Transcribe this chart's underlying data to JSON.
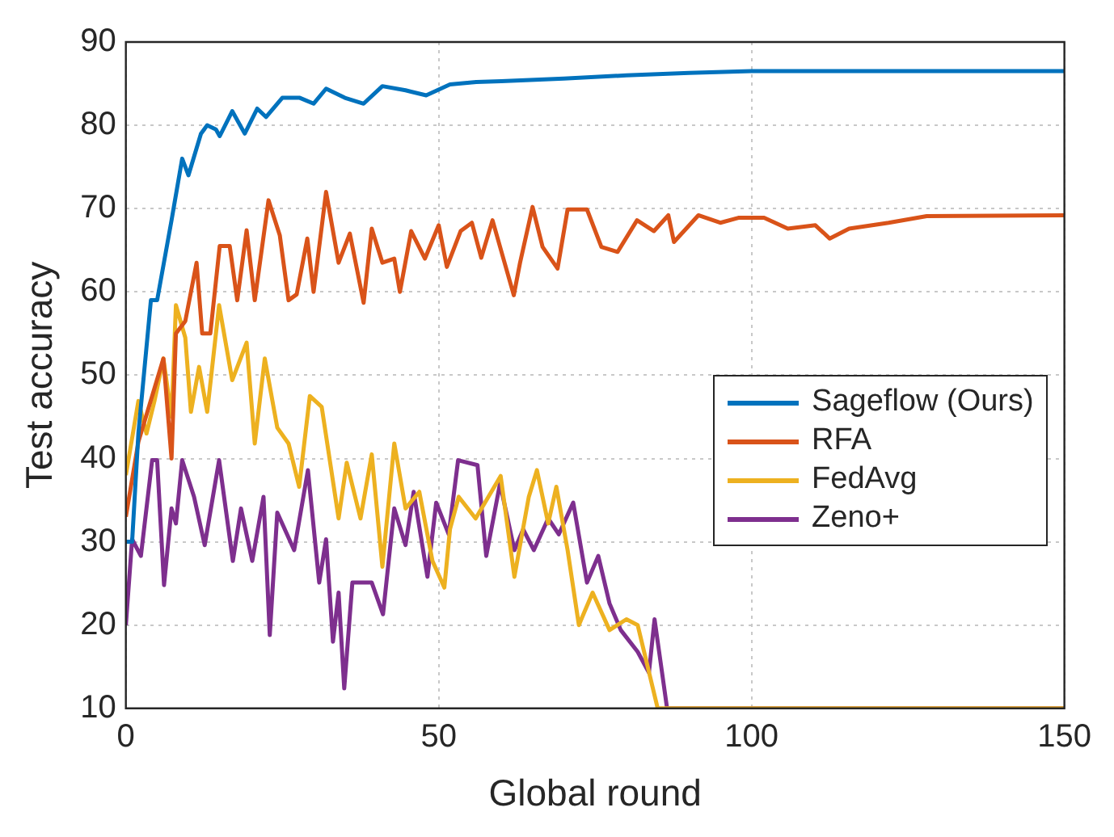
{
  "chart_data": {
    "type": "line",
    "xlabel": "Global round",
    "ylabel": "Test accuracy",
    "xlim": [
      0,
      150
    ],
    "xticks": [
      0,
      50,
      100,
      150
    ],
    "ylim": [
      10,
      90
    ],
    "yticks": [
      10,
      20,
      30,
      40,
      50,
      60,
      70,
      80,
      90
    ],
    "grid": true,
    "legend": "right",
    "marker": "none",
    "series": [
      {
        "name": "Sageflow (Ours)",
        "color": "#0072bd",
        "x": [
          0,
          1,
          2,
          4,
          5,
          7.3,
          9,
          10,
          12,
          13,
          14.4,
          15,
          17,
          19,
          21,
          22.4,
          25,
          27.8,
          30,
          32,
          35,
          38,
          41,
          44.7,
          48,
          51.8,
          56,
          60,
          70,
          80,
          90,
          100,
          120,
          150
        ],
        "values": [
          30,
          30,
          43,
          59,
          59,
          68.6,
          76,
          74,
          79,
          80,
          79.5,
          78.7,
          81.7,
          79,
          82,
          81,
          83.3,
          83.3,
          82.6,
          84.4,
          83.3,
          82.6,
          84.7,
          84.2,
          83.6,
          84.9,
          85.2,
          85.3,
          85.6,
          86,
          86.3,
          86.5,
          86.5,
          86.5
        ]
      },
      {
        "name": "RFA",
        "color": "#d95319",
        "x": [
          0,
          2,
          6,
          7.3,
          8,
          9.5,
          11.3,
          12.2,
          13.5,
          15,
          16.6,
          17.8,
          19.3,
          20.6,
          22.8,
          24.6,
          26,
          27.3,
          29,
          30,
          32,
          34,
          35.8,
          38,
          39.3,
          41,
          42.9,
          43.8,
          45.6,
          47.8,
          50,
          51.3,
          53.5,
          55.3,
          56.8,
          58.6,
          62,
          63,
          65,
          66.6,
          69,
          70.6,
          73.7,
          76,
          78.6,
          81.7,
          84.4,
          86.7,
          87.6,
          91.5,
          95,
          97.9,
          102,
          105.8,
          110.2,
          112.5,
          115.6,
          121.9,
          128,
          150
        ],
        "values": [
          33,
          42,
          52,
          40,
          55,
          56.5,
          63.5,
          55,
          55,
          65.5,
          65.5,
          59,
          67.4,
          59,
          71,
          66.8,
          59,
          59.7,
          66.4,
          60,
          72,
          63.5,
          67,
          58.7,
          67.6,
          63.5,
          64,
          60,
          67.3,
          64,
          68,
          63,
          67.3,
          68.3,
          64.1,
          68.6,
          59.6,
          63.5,
          70.2,
          65.4,
          62.8,
          69.9,
          69.9,
          65.4,
          64.8,
          68.6,
          67.3,
          69.2,
          66,
          69.2,
          68.3,
          68.9,
          68.9,
          67.6,
          68,
          66.4,
          67.6,
          68.3,
          69.1,
          69.2
        ]
      },
      {
        "name": "FedAvg",
        "color": "#edb120",
        "x": [
          0,
          2,
          3.3,
          4.6,
          6,
          7.3,
          8,
          9.5,
          10.4,
          11.7,
          13,
          14.9,
          17,
          19.3,
          20.6,
          22.2,
          24.2,
          26,
          27.7,
          29.4,
          31.3,
          34,
          35.3,
          37.5,
          39.3,
          41,
          42.9,
          44.7,
          46.9,
          49,
          50.9,
          51.8,
          53.2,
          55.9,
          59.9,
          62.1,
          64.4,
          65.7,
          67.5,
          68.8,
          70.6,
          72.4,
          74.6,
          77.3,
          80,
          81.8,
          85,
          150
        ],
        "values": [
          38,
          46.9,
          43,
          47,
          52,
          45,
          58.4,
          54.5,
          45.6,
          51,
          45.6,
          58.4,
          49.4,
          53.9,
          41.8,
          52,
          43.7,
          41.8,
          36.6,
          47.5,
          46.2,
          32.8,
          39.5,
          32.8,
          40.5,
          27,
          41.8,
          34,
          36,
          27.7,
          24.5,
          31.5,
          35.4,
          32.8,
          37.9,
          25.8,
          35.4,
          38.6,
          32.2,
          36.6,
          29,
          20,
          23.9,
          19.4,
          20.7,
          20,
          10,
          10
        ]
      },
      {
        "name": "Zeno+",
        "color": "#7e2f8e",
        "x": [
          0,
          1,
          2.4,
          4.2,
          5,
          6.1,
          7.3,
          8,
          9,
          10.9,
          12.6,
          14.9,
          17.1,
          18.4,
          20.2,
          22,
          23,
          24.2,
          26.9,
          29.1,
          30.9,
          32,
          33.1,
          34,
          34.9,
          36.2,
          39.3,
          41.1,
          42.9,
          44.7,
          46,
          48.2,
          49.6,
          51.6,
          53.1,
          56.2,
          57.6,
          59.8,
          62.1,
          63.5,
          65.2,
          67.5,
          69.2,
          71.5,
          73.7,
          75.5,
          77.3,
          79.1,
          81.8,
          83.6,
          84.5,
          86.5,
          150
        ],
        "values": [
          20,
          30.3,
          28.3,
          39.8,
          39.8,
          24.8,
          34,
          32.2,
          39.8,
          35.4,
          29.6,
          39.8,
          27.7,
          34,
          27.7,
          35.4,
          18.8,
          33.5,
          29,
          38.6,
          25.1,
          30.3,
          18,
          23.9,
          12.4,
          25.1,
          25.1,
          21.3,
          34,
          29.6,
          36,
          25.8,
          34.7,
          30.9,
          39.8,
          39.2,
          28.3,
          37,
          29,
          31.5,
          29,
          32.8,
          30.9,
          34.7,
          25.1,
          28.3,
          22.6,
          19.4,
          16.8,
          14.3,
          20.7,
          10,
          10
        ]
      }
    ]
  }
}
